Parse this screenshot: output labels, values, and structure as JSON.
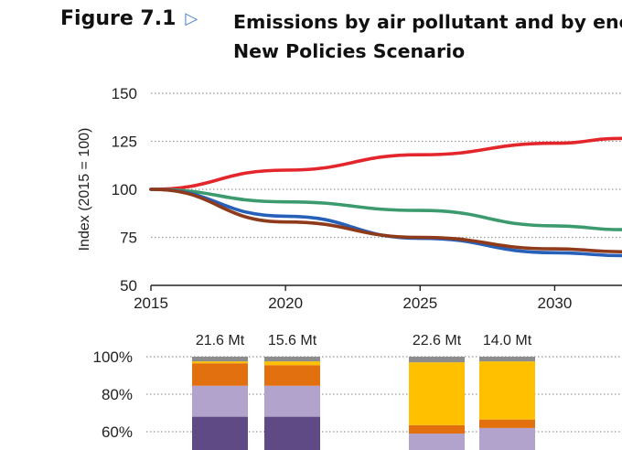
{
  "figure": {
    "number": "Figure 7.1",
    "arrow_icon": "triangle-right-icon",
    "title_line1": "Emissions by air pollutant and by ene",
    "title_line2": "New Policies Scenario"
  },
  "chart_data": [
    {
      "type": "line",
      "ylabel": "Index (2015 = 100)",
      "xlabel": "",
      "xlim": [
        2015,
        2032.5
      ],
      "ylim": [
        50,
        150
      ],
      "x_ticks": [
        2015,
        2020,
        2025,
        2030
      ],
      "y_ticks": [
        50,
        75,
        100,
        125,
        150
      ],
      "grid": "horizontal dotted",
      "series": [
        {
          "color": "#e3262b",
          "x": [
            2015,
            2020,
            2025,
            2030,
            2032.5
          ],
          "values": [
            100,
            110,
            118,
            124,
            126.5
          ]
        },
        {
          "color": "#3c9b6e",
          "x": [
            2015,
            2020,
            2025,
            2030,
            2032.5
          ],
          "values": [
            100,
            93.5,
            89,
            81,
            79
          ]
        },
        {
          "color": "#2660b8",
          "x": [
            2015,
            2020,
            2025,
            2030,
            2032.5
          ],
          "values": [
            100,
            86,
            74.5,
            67,
            65.5
          ]
        },
        {
          "color": "#8e3a1b",
          "x": [
            2015,
            2020,
            2025,
            2030,
            2032.5
          ],
          "values": [
            100,
            83,
            75,
            69,
            67.5
          ]
        }
      ]
    },
    {
      "type": "bar",
      "stacked": true,
      "percent": true,
      "y_ticks": [
        "60%",
        "80%",
        "100%"
      ],
      "ylim_visible": [
        56,
        100
      ],
      "grid": "horizontal dotted",
      "bars": [
        {
          "label": "21.6 Mt",
          "segments": [
            {
              "color": "#5f4a85",
              "from": 0,
              "to": 68
            },
            {
              "color": "#b2a3cc",
              "from": 68,
              "to": 84.5
            },
            {
              "color": "#e3700f",
              "from": 84.5,
              "to": 96.5
            },
            {
              "color": "#ffc000",
              "from": 96.5,
              "to": 97.5
            },
            {
              "color": "#8c8c8c",
              "from": 97.5,
              "to": 100
            }
          ]
        },
        {
          "label": "15.6 Mt",
          "segments": [
            {
              "color": "#5f4a85",
              "from": 0,
              "to": 68
            },
            {
              "color": "#b2a3cc",
              "from": 68,
              "to": 84.5
            },
            {
              "color": "#e3700f",
              "from": 84.5,
              "to": 95.5
            },
            {
              "color": "#ffc000",
              "from": 95.5,
              "to": 97.5
            },
            {
              "color": "#8c8c8c",
              "from": 97.5,
              "to": 100
            }
          ]
        },
        {
          "label": "22.6 Mt",
          "segments": [
            {
              "color": "#b2a3cc",
              "from": 0,
              "to": 59
            },
            {
              "color": "#e3700f",
              "from": 59,
              "to": 63.5
            },
            {
              "color": "#ffc000",
              "from": 63.5,
              "to": 97
            },
            {
              "color": "#8c8c8c",
              "from": 97,
              "to": 100
            }
          ]
        },
        {
          "label": "14.0 Mt",
          "segments": [
            {
              "color": "#b2a3cc",
              "from": 0,
              "to": 62
            },
            {
              "color": "#e3700f",
              "from": 62,
              "to": 66.5
            },
            {
              "color": "#ffc000",
              "from": 66.5,
              "to": 97.5
            },
            {
              "color": "#8c8c8c",
              "from": 97.5,
              "to": 100
            }
          ]
        }
      ]
    }
  ]
}
